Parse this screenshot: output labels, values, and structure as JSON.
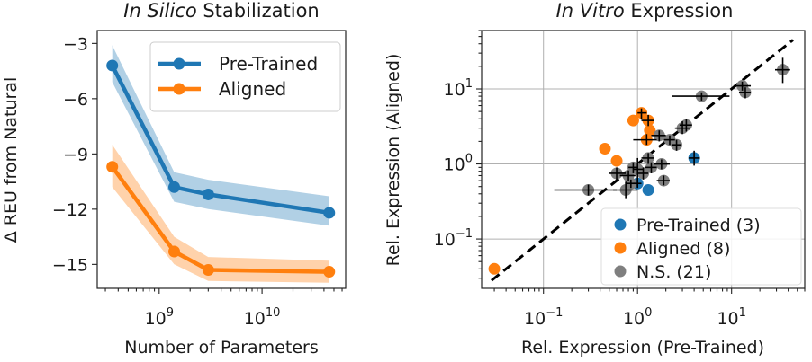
{
  "chart_data": [
    {
      "type": "line",
      "title_italic": "In Silico",
      "title_rest": " Stabilization",
      "xlabel": "Number of Parameters",
      "ylabel": "Δ REU from Natural",
      "xscale": "log",
      "xlim": [
        250000000,
        65000000000
      ],
      "ylim": [
        -16.3,
        -2.3
      ],
      "yticks": [
        -3,
        -6,
        -9,
        -12,
        -15
      ],
      "ytick_labels": [
        "−3",
        "−6",
        "−9",
        "−12",
        "−15"
      ],
      "xticks": [
        1000000000,
        10000000000
      ],
      "xtick_labels": [
        {
          "base": "10",
          "exp": "9"
        },
        {
          "base": "10",
          "exp": "10"
        }
      ],
      "grid": false,
      "legend_position": "upper right",
      "series": [
        {
          "name": "Pre-Trained",
          "color": "#1f77b4",
          "x": [
            350000000,
            1400000000,
            3000000000,
            45000000000
          ],
          "y": [
            -4.2,
            -10.8,
            -11.2,
            -12.2
          ],
          "band_lower": [
            -5.1,
            -11.6,
            -12.0,
            -12.9
          ],
          "band_upper": [
            -3.1,
            -10.0,
            -10.4,
            -11.3
          ]
        },
        {
          "name": "Aligned",
          "color": "#ff7f0e",
          "x": [
            350000000,
            1400000000,
            3000000000,
            45000000000
          ],
          "y": [
            -9.7,
            -14.3,
            -15.3,
            -15.4
          ],
          "band_lower": [
            -10.8,
            -15.0,
            -15.9,
            -16.0
          ],
          "band_upper": [
            -8.5,
            -13.5,
            -14.6,
            -14.8
          ]
        }
      ]
    },
    {
      "type": "scatter",
      "title_italic": "In Vitro",
      "title_rest": " Expression",
      "xlabel": "Rel. Expression (Pre-Trained)",
      "ylabel": "Rel. Expression (Aligned)",
      "xscale": "log",
      "yscale": "log",
      "xlim": [
        0.022,
        60
      ],
      "ylim": [
        0.022,
        60
      ],
      "ticks": [
        0.1,
        1,
        10
      ],
      "tick_labels": [
        {
          "base": "10",
          "exp": "−1"
        },
        {
          "base": "10",
          "exp": "0"
        },
        {
          "base": "10",
          "exp": "1"
        }
      ],
      "grid": true,
      "diagonal": "y = x (dashed)",
      "legend_position": "lower right",
      "groups": [
        {
          "name": "Pre-Trained (3)",
          "color": "#1f77b4",
          "points": [
            {
              "x": 4.0,
              "y": 1.2,
              "xlo": 3.5,
              "xhi": 4.6,
              "ylo": 0.95,
              "yhi": 1.5
            },
            {
              "x": 1.0,
              "y": 0.55,
              "xlo": 0.9,
              "xhi": 1.1,
              "ylo": 0.48,
              "yhi": 0.63
            },
            {
              "x": 1.3,
              "y": 0.45,
              "xlo": 1.3,
              "xhi": 1.3,
              "ylo": 0.45,
              "yhi": 0.45
            }
          ]
        },
        {
          "name": "Aligned (8)",
          "color": "#ff7f0e",
          "points": [
            {
              "x": 0.03,
              "y": 0.04,
              "xlo": 0.03,
              "xhi": 0.03,
              "ylo": 0.04,
              "yhi": 0.04
            },
            {
              "x": 0.45,
              "y": 1.6,
              "xlo": 0.45,
              "xhi": 0.45,
              "ylo": 1.6,
              "yhi": 1.6
            },
            {
              "x": 0.6,
              "y": 1.1,
              "xlo": 0.6,
              "xhi": 0.6,
              "ylo": 1.1,
              "yhi": 1.1
            },
            {
              "x": 0.9,
              "y": 3.8,
              "xlo": 0.9,
              "xhi": 0.9,
              "ylo": 3.8,
              "yhi": 3.8
            },
            {
              "x": 1.1,
              "y": 4.8,
              "xlo": 1.0,
              "xhi": 1.25,
              "ylo": 3.9,
              "yhi": 5.5
            },
            {
              "x": 1.3,
              "y": 3.8,
              "xlo": 1.1,
              "xhi": 1.5,
              "ylo": 3.2,
              "yhi": 4.5
            },
            {
              "x": 1.25,
              "y": 2.1,
              "xlo": 0.9,
              "xhi": 1.6,
              "ylo": 1.8,
              "yhi": 2.5
            },
            {
              "x": 1.35,
              "y": 2.8,
              "xlo": 1.35,
              "xhi": 1.35,
              "ylo": 2.8,
              "yhi": 2.8
            }
          ]
        },
        {
          "name": "N.S. (21)",
          "color": "#7f7f7f",
          "points": [
            {
              "x": 0.3,
              "y": 0.45,
              "xlo": 0.13,
              "xhi": 0.6,
              "ylo": 0.38,
              "yhi": 0.53
            },
            {
              "x": 0.75,
              "y": 0.45,
              "xlo": 0.55,
              "xhi": 1.0,
              "ylo": 0.35,
              "yhi": 0.58
            },
            {
              "x": 0.6,
              "y": 0.75,
              "xlo": 0.5,
              "xhi": 0.75,
              "ylo": 0.6,
              "yhi": 0.9
            },
            {
              "x": 0.8,
              "y": 0.7,
              "xlo": 0.65,
              "xhi": 0.95,
              "ylo": 0.6,
              "yhi": 0.82
            },
            {
              "x": 0.9,
              "y": 0.9,
              "xlo": 0.8,
              "xhi": 1.0,
              "ylo": 0.75,
              "yhi": 1.05
            },
            {
              "x": 1.0,
              "y": 0.85,
              "xlo": 0.9,
              "xhi": 1.15,
              "ylo": 0.5,
              "yhi": 1.2
            },
            {
              "x": 1.15,
              "y": 0.75,
              "xlo": 1.0,
              "xhi": 1.3,
              "ylo": 0.62,
              "yhi": 0.9
            },
            {
              "x": 1.3,
              "y": 1.2,
              "xlo": 1.1,
              "xhi": 1.5,
              "ylo": 1.0,
              "yhi": 1.4
            },
            {
              "x": 1.4,
              "y": 0.9,
              "xlo": 1.2,
              "xhi": 1.6,
              "ylo": 0.75,
              "yhi": 1.05
            },
            {
              "x": 1.8,
              "y": 1.0,
              "xlo": 1.5,
              "xhi": 2.2,
              "ylo": 0.85,
              "yhi": 1.15
            },
            {
              "x": 1.7,
              "y": 2.4,
              "xlo": 1.4,
              "xhi": 2.0,
              "ylo": 2.0,
              "yhi": 2.8
            },
            {
              "x": 2.2,
              "y": 2.1,
              "xlo": 1.9,
              "xhi": 2.5,
              "ylo": 1.8,
              "yhi": 2.4
            },
            {
              "x": 2.6,
              "y": 1.8,
              "xlo": 2.3,
              "xhi": 2.9,
              "ylo": 1.5,
              "yhi": 2.1
            },
            {
              "x": 3.0,
              "y": 3.0,
              "xlo": 2.5,
              "xhi": 3.6,
              "ylo": 2.5,
              "yhi": 3.7
            },
            {
              "x": 3.3,
              "y": 3.3,
              "xlo": 2.8,
              "xhi": 3.8,
              "ylo": 2.7,
              "yhi": 4.0
            },
            {
              "x": 1.9,
              "y": 0.6,
              "xlo": 1.6,
              "xhi": 2.2,
              "ylo": 0.52,
              "yhi": 0.7
            },
            {
              "x": 4.8,
              "y": 8.0,
              "xlo": 2.3,
              "xhi": 9.5,
              "ylo": 7.0,
              "yhi": 9.0
            },
            {
              "x": 13.0,
              "y": 11.0,
              "xlo": 10.5,
              "xhi": 16.0,
              "ylo": 9.5,
              "yhi": 12.5
            },
            {
              "x": 14.0,
              "y": 9.0,
              "xlo": 12.0,
              "xhi": 16.0,
              "ylo": 7.5,
              "yhi": 10.5
            },
            {
              "x": 35.0,
              "y": 18.0,
              "xlo": 29.0,
              "xhi": 42.0,
              "ylo": 12.0,
              "yhi": 26.0
            },
            {
              "x": 0.85,
              "y": 0.55,
              "xlo": 0.75,
              "xhi": 0.95,
              "ylo": 0.48,
              "yhi": 0.62
            }
          ]
        }
      ]
    }
  ]
}
